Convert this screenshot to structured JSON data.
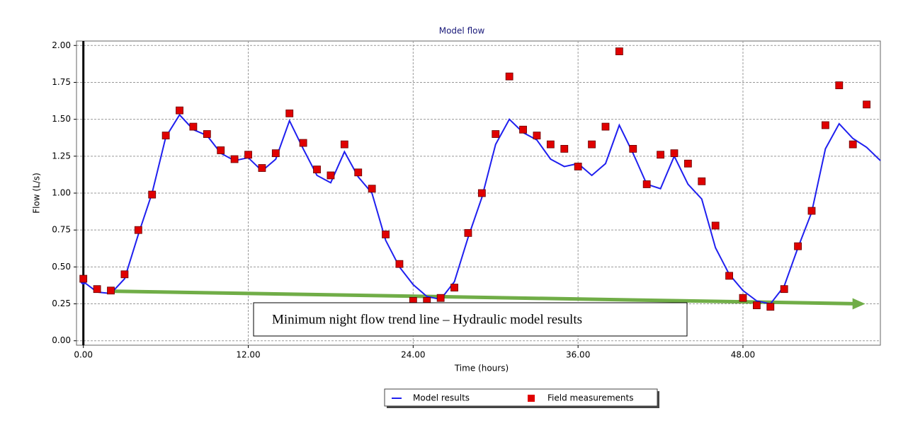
{
  "chart_data": {
    "type": "line",
    "title": "Model flow",
    "x_label": "Time (hours)",
    "y_label": "Flow (L/s)",
    "xlim": [
      -0.5,
      58
    ],
    "ylim": [
      -0.03,
      2.03
    ],
    "xticks": [
      {
        "value": 0,
        "label": "0.00"
      },
      {
        "value": 12,
        "label": "12.00"
      },
      {
        "value": 24,
        "label": "24.00"
      },
      {
        "value": 36,
        "label": "36.00"
      },
      {
        "value": 48,
        "label": "48.00"
      }
    ],
    "yticks": [
      {
        "value": 0,
        "label": "0.00"
      },
      {
        "value": 0.25,
        "label": "0.25"
      },
      {
        "value": 0.5,
        "label": "0.50"
      },
      {
        "value": 0.75,
        "label": "0.75"
      },
      {
        "value": 1,
        "label": "1.00"
      },
      {
        "value": 1.25,
        "label": "1.25"
      },
      {
        "value": 1.5,
        "label": "1.50"
      },
      {
        "value": 1.75,
        "label": "1.75"
      },
      {
        "value": 2,
        "label": "2.00"
      }
    ],
    "grid": true,
    "series": [
      {
        "name": "Model results",
        "color": "#1f1fef",
        "style": "line",
        "x": [
          0,
          1,
          2,
          3,
          4,
          5,
          6,
          7,
          8,
          9,
          10,
          11,
          12,
          13,
          14,
          15,
          16,
          17,
          18,
          19,
          20,
          21,
          22,
          23,
          24,
          25,
          26,
          27,
          28,
          29,
          30,
          31,
          32,
          33,
          34,
          35,
          36,
          37,
          38,
          39,
          40,
          41,
          42,
          43,
          44,
          45,
          46,
          47,
          48,
          49,
          50,
          51,
          52,
          53,
          54,
          55,
          56,
          57,
          58
        ],
        "values": [
          0.4,
          0.33,
          0.32,
          0.42,
          0.72,
          1.0,
          1.38,
          1.53,
          1.43,
          1.39,
          1.27,
          1.22,
          1.24,
          1.15,
          1.23,
          1.49,
          1.3,
          1.12,
          1.07,
          1.28,
          1.11,
          1.0,
          0.68,
          0.5,
          0.38,
          0.3,
          0.28,
          0.4,
          0.7,
          0.97,
          1.33,
          1.5,
          1.41,
          1.36,
          1.23,
          1.18,
          1.2,
          1.12,
          1.2,
          1.46,
          1.27,
          1.06,
          1.03,
          1.25,
          1.06,
          0.96,
          0.63,
          0.45,
          0.34,
          0.27,
          0.25,
          0.37,
          0.63,
          0.87,
          1.3,
          1.47,
          1.37,
          1.31,
          1.22
        ]
      },
      {
        "name": "Field measurements",
        "color": "#e00000",
        "style": "square",
        "x": [
          0,
          1,
          2,
          3,
          4,
          5,
          6,
          7,
          8,
          9,
          10,
          11,
          12,
          13,
          14,
          15,
          16,
          17,
          18,
          19,
          20,
          21,
          22,
          23,
          24,
          25,
          26,
          27,
          28,
          29,
          30,
          31,
          32,
          33,
          34,
          35,
          36,
          37,
          38,
          39,
          40,
          41,
          42,
          43,
          44,
          45,
          46,
          47,
          48,
          49,
          50,
          51,
          52,
          53,
          54,
          55,
          56,
          57
        ],
        "values": [
          0.42,
          0.35,
          0.34,
          0.45,
          0.75,
          0.99,
          1.39,
          1.56,
          1.45,
          1.4,
          1.29,
          1.23,
          1.26,
          1.17,
          1.27,
          1.54,
          1.34,
          1.16,
          1.12,
          1.33,
          1.14,
          1.03,
          0.72,
          0.52,
          0.27,
          0.27,
          0.29,
          0.36,
          0.73,
          1.0,
          1.4,
          1.79,
          1.43,
          1.39,
          1.33,
          1.3,
          1.18,
          1.33,
          1.45,
          1.96,
          1.3,
          1.06,
          1.26,
          1.27,
          1.2,
          1.08,
          0.78,
          0.44,
          0.29,
          0.24,
          0.23,
          0.35,
          0.64,
          0.88,
          1.46,
          1.73,
          1.33,
          1.6
        ]
      }
    ],
    "trend_line": {
      "x": [
        2,
        56.9
      ],
      "values": [
        0.336,
        0.25
      ],
      "color": "#70ad47"
    },
    "annotation": "Minimum night flow trend line – Hydraulic model results"
  }
}
